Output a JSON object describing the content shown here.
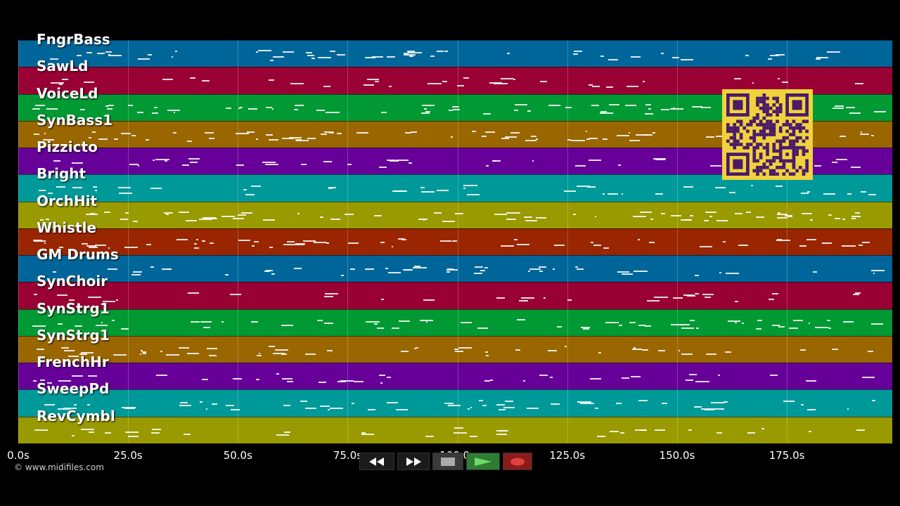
{
  "tracks": [
    {
      "name": "FngrBass",
      "color": "#006699"
    },
    {
      "name": "SawLd",
      "color": "#990033"
    },
    {
      "name": "VoiceLd",
      "color": "#009933"
    },
    {
      "name": "SynBass1",
      "color": "#996600"
    },
    {
      "name": "Pizzicto",
      "color": "#660099"
    },
    {
      "name": "Bright",
      "color": "#009999"
    },
    {
      "name": "OrchHit",
      "color": "#999900"
    },
    {
      "name": "Whistle",
      "color": "#992600"
    },
    {
      "name": "GM Drums",
      "color": "#006699"
    },
    {
      "name": "SynChoir",
      "color": "#990033"
    },
    {
      "name": "SynStrg1",
      "color": "#009933"
    },
    {
      "name": "SynStrg1",
      "color": "#996600"
    },
    {
      "name": "FrenchHr",
      "color": "#660099"
    },
    {
      "name": "SweepPd",
      "color": "#009999"
    },
    {
      "name": "RevCymbl",
      "color": "#999900"
    }
  ],
  "timeline": {
    "ticks": [
      "0.0s",
      "25.0s",
      "50.0s",
      "75.0s",
      "100.0s",
      "125.0s",
      "150.0s",
      "175.0s"
    ],
    "tick_values": [
      0,
      25,
      50,
      75,
      100,
      125,
      150,
      175
    ],
    "max_seconds": 199
  },
  "copyright": "© www.midifiles.com",
  "transport": {
    "rewind": "rewind-icon",
    "fast_forward": "fast-forward-icon",
    "stop": "stop-icon",
    "play": "play-icon",
    "record": "record-icon",
    "colors": {
      "play": "#2e7d32",
      "record": "#8b1a1a",
      "stop": "#3a3a3a"
    }
  },
  "qr_code": {
    "color": "#f0d23c"
  }
}
